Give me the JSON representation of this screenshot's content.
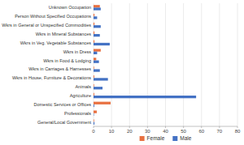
{
  "chart_data": {
    "type": "bar",
    "orientation": "horizontal",
    "categories": [
      "General/Local Government",
      "Professionals",
      "Domestic Services or Offices",
      "Agriculture",
      "Animals",
      "Wkrs in House, Furniture & Decorations",
      "Wkrs in Carriages & Harnesses",
      "Wkrs in Food & Lodging",
      "Wkrs in Dress",
      "Wkrs in Veg. Vegetable Substances",
      "Wkrs in Mineral Substances",
      "Wkrs in General or Unspecified Commodities",
      "Person Without Specified Occupations",
      "Unknown Occupation"
    ],
    "series": [
      {
        "name": "Female",
        "color": "#E87040",
        "values": [
          0.3,
          1.8,
          9.5,
          0.4,
          0.3,
          0.4,
          0.3,
          1.5,
          4.0,
          0.5,
          0.5,
          0.5,
          0.5,
          3.5
        ]
      },
      {
        "name": "Male",
        "color": "#4472C4",
        "values": [
          0.5,
          0.2,
          0.4,
          57,
          5,
          8,
          3.5,
          3,
          2,
          9,
          3.5,
          4,
          2,
          4
        ]
      }
    ],
    "xlim": [
      0,
      80
    ],
    "xticks": [
      0,
      10,
      20,
      30,
      40,
      50,
      60,
      70,
      80
    ],
    "grid": true,
    "legend": "bottom"
  }
}
